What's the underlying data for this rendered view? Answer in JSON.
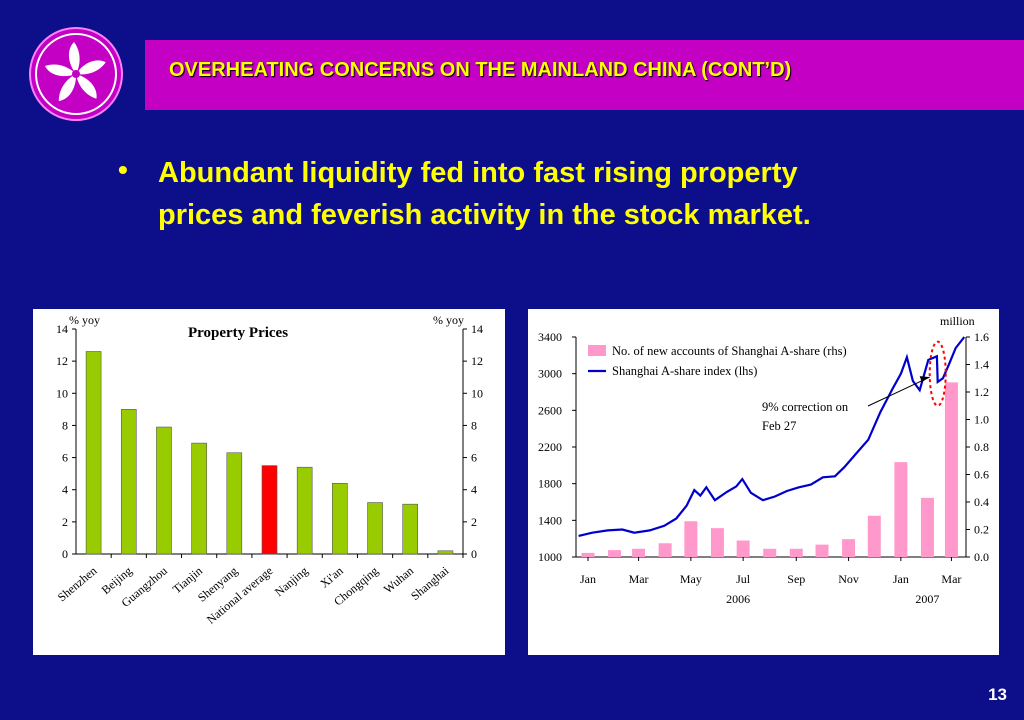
{
  "header": {
    "title": "OVERHEATING CONCERNS ON THE MAINLAND CHINA (CONT’D)",
    "logo_icon": "bauhinia-flower-icon"
  },
  "bullet": {
    "line1": "Abundant liquidity fed into fast rising property",
    "line2": "prices and feverish activity in the stock market."
  },
  "page_number": "13",
  "colors": {
    "background": "#0d0f8a",
    "title_bar": "#c300c3",
    "accent_text": "#ffff00",
    "bar_green": "#99cc00",
    "bar_highlight": "#ff0000",
    "bar_pink": "#ff99cc",
    "line_blue": "#0000cc"
  },
  "chart_data": [
    {
      "type": "bar",
      "title": "Property Prices",
      "ylabel_left": "% yoy",
      "ylabel_right": "% yoy",
      "ylim": [
        0,
        14
      ],
      "yticks": [
        "0",
        "2",
        "4",
        "6",
        "8",
        "10",
        "12",
        "14"
      ],
      "categories": [
        "Shenzhen",
        "Beijing",
        "Guangzhou",
        "Tianjin",
        "Shenyang",
        "National average",
        "Nanjing",
        "Xi'an",
        "Chongqing",
        "Wuhan",
        "Shanghai"
      ],
      "values": [
        12.6,
        9.0,
        7.9,
        6.9,
        6.3,
        5.5,
        5.4,
        4.4,
        3.2,
        3.1,
        0.2
      ],
      "highlight": "National average"
    },
    {
      "type": "bar+line",
      "unit_right": "million",
      "yticks_left": [
        "1000",
        "1400",
        "1800",
        "2200",
        "2600",
        "3000",
        "3400"
      ],
      "ylim_left": [
        1000,
        3400
      ],
      "yticks_right": [
        "0.0",
        "0.2",
        "0.4",
        "0.6",
        "0.8",
        "1.0",
        "1.2",
        "1.4",
        "1.6"
      ],
      "ylim_right": [
        0,
        1.6
      ],
      "xticks": [
        "Jan",
        "Mar",
        "May",
        "Jul",
        "Sep",
        "Nov",
        "Jan",
        "Mar"
      ],
      "year_labels": [
        "2006",
        "2007"
      ],
      "legend": [
        {
          "name": "No. of new accounts of Shanghai A-share (rhs)",
          "kind": "bar"
        },
        {
          "name": "Shanghai A-share index (lhs)",
          "kind": "line"
        }
      ],
      "bar_series": {
        "name": "No. of new accounts of Shanghai A-share (rhs)",
        "x": [
          "2006-01",
          "2006-02",
          "2006-03",
          "2006-04",
          "2006-05",
          "2006-06",
          "2006-07",
          "2006-08",
          "2006-09",
          "2006-10",
          "2006-11",
          "2006-12",
          "2007-01",
          "2007-02",
          "2007-03"
        ],
        "values": [
          0.03,
          0.05,
          0.06,
          0.1,
          0.26,
          0.21,
          0.12,
          0.06,
          0.06,
          0.09,
          0.13,
          0.3,
          0.69,
          0.43,
          1.27
        ]
      },
      "line_series": {
        "name": "Shanghai A-share index (lhs)",
        "points": [
          [
            "2006-01-04",
            1230
          ],
          [
            "2006-01-20",
            1265
          ],
          [
            "2006-02-07",
            1290
          ],
          [
            "2006-02-24",
            1300
          ],
          [
            "2006-03-10",
            1265
          ],
          [
            "2006-03-28",
            1290
          ],
          [
            "2006-04-14",
            1340
          ],
          [
            "2006-04-28",
            1420
          ],
          [
            "2006-05-10",
            1560
          ],
          [
            "2006-05-19",
            1730
          ],
          [
            "2006-05-26",
            1670
          ],
          [
            "2006-06-02",
            1760
          ],
          [
            "2006-06-12",
            1620
          ],
          [
            "2006-06-26",
            1710
          ],
          [
            "2006-07-07",
            1770
          ],
          [
            "2006-07-14",
            1850
          ],
          [
            "2006-07-24",
            1700
          ],
          [
            "2006-08-07",
            1620
          ],
          [
            "2006-08-21",
            1660
          ],
          [
            "2006-09-04",
            1720
          ],
          [
            "2006-09-18",
            1760
          ],
          [
            "2006-10-02",
            1790
          ],
          [
            "2006-10-16",
            1870
          ],
          [
            "2006-10-30",
            1880
          ],
          [
            "2006-11-10",
            1980
          ],
          [
            "2006-11-24",
            2130
          ],
          [
            "2006-12-08",
            2280
          ],
          [
            "2006-12-22",
            2580
          ],
          [
            "2007-01-05",
            2830
          ],
          [
            "2007-01-15",
            3000
          ],
          [
            "2007-01-22",
            3180
          ],
          [
            "2007-01-29",
            2920
          ],
          [
            "2007-02-06",
            2820
          ],
          [
            "2007-02-16",
            3150
          ],
          [
            "2007-02-26",
            3190
          ],
          [
            "2007-02-27",
            2910
          ],
          [
            "2007-03-05",
            2950
          ],
          [
            "2007-03-12",
            3100
          ],
          [
            "2007-03-20",
            3280
          ],
          [
            "2007-03-30",
            3400
          ]
        ]
      },
      "annotation": {
        "line1": "9% correction on",
        "line2": "Feb 27"
      }
    }
  ]
}
